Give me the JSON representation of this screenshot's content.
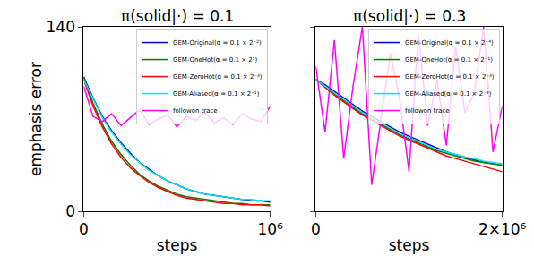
{
  "chart_data": [
    {
      "type": "line",
      "title": "π(solid|·) = 0.1",
      "x_label": "steps",
      "y_label": "emphasis error",
      "x": [
        0,
        50000,
        100000,
        150000,
        200000,
        250000,
        300000,
        350000,
        400000,
        450000,
        500000,
        550000,
        600000,
        650000,
        700000,
        750000,
        800000,
        850000,
        900000,
        950000,
        1000000
      ],
      "xlim": [
        0,
        1000000
      ],
      "xticks": [
        0,
        {
          "value": 1000000,
          "label": "10⁶"
        }
      ],
      "ylim": [
        0,
        140
      ],
      "yticks": [
        0,
        140
      ],
      "legend": "upper right",
      "series": [
        {
          "name": "GEM-Original(α = 0.1 × 2⁻²)",
          "color": "#0000cc",
          "values": [
            102,
            86,
            72,
            61,
            52,
            44,
            37,
            32,
            27,
            23,
            20,
            17,
            15,
            13,
            12,
            11,
            10,
            9,
            8,
            8,
            7
          ]
        },
        {
          "name": "GEM-OneHot(α = 0.1 × 2¹)",
          "color": "#008000",
          "values": [
            102,
            82,
            66,
            53,
            43,
            35,
            28,
            23,
            19,
            16,
            13,
            11,
            10,
            9,
            8,
            7,
            6,
            6,
            5,
            5,
            5
          ]
        },
        {
          "name": "GEM-ZeroHot(α = 0.1 × 2⁻³)",
          "color": "#ff0000",
          "values": [
            100,
            80,
            64,
            51,
            41,
            33,
            27,
            22,
            18,
            15,
            12,
            10,
            9,
            8,
            7,
            6,
            6,
            5,
            5,
            5,
            4
          ]
        },
        {
          "name": "GEM-Aliased(α = 0.1 × 2⁻¹)",
          "color": "#00e5ee",
          "values": [
            100,
            85,
            71,
            60,
            51,
            43,
            37,
            31,
            27,
            23,
            20,
            17,
            15,
            13,
            12,
            11,
            10,
            9,
            9,
            8,
            8
          ]
        },
        {
          "name": "followon trace",
          "color": "#ff00ff",
          "values": [
            95,
            72,
            68,
            74,
            65,
            71,
            77,
            66,
            70,
            73,
            64,
            72,
            69,
            75,
            67,
            71,
            66,
            74,
            70,
            68,
            80
          ]
        }
      ]
    },
    {
      "type": "line",
      "title": "π(solid|·) = 0.3",
      "x_label": "steps",
      "x": [
        0,
        100000,
        200000,
        300000,
        400000,
        500000,
        600000,
        700000,
        800000,
        900000,
        1000000,
        1100000,
        1200000,
        1300000,
        1400000,
        1500000,
        1600000,
        1700000,
        1800000,
        1900000,
        2000000
      ],
      "xlim": [
        0,
        2000000
      ],
      "xticks": [
        0,
        {
          "value": 2000000,
          "label": "2×10⁶"
        }
      ],
      "ylim": [
        0,
        140
      ],
      "yticks": [
        0,
        140
      ],
      "tick_labels": "x",
      "legend": "upper right",
      "series": [
        {
          "name": "GEM-Original(α = 0.1 × 2⁻⁴)",
          "color": "#0000cc",
          "values": [
            100,
            96,
            91,
            86,
            81,
            76,
            72,
            68,
            64,
            60,
            57,
            54,
            51,
            48,
            45,
            43,
            41,
            39,
            37,
            36,
            35
          ]
        },
        {
          "name": "GEM-OneHot(α = 0.1 × 2⁻¹)",
          "color": "#008000",
          "values": [
            100,
            95,
            89,
            84,
            79,
            74,
            70,
            66,
            62,
            58,
            55,
            52,
            49,
            46,
            44,
            42,
            40,
            38,
            37,
            36,
            35
          ]
        },
        {
          "name": "GEM-ZeroHot(α = 0.1 × 2⁻³)",
          "color": "#ff0000",
          "values": [
            100,
            94,
            88,
            83,
            78,
            73,
            69,
            65,
            61,
            57,
            54,
            51,
            48,
            45,
            42,
            40,
            38,
            36,
            34,
            32,
            30
          ]
        },
        {
          "name": "GEM-Aliased(α = 0.1 × 2⁻³)",
          "color": "#00e5ee",
          "values": [
            100,
            95,
            90,
            85,
            80,
            75,
            71,
            67,
            63,
            59,
            56,
            53,
            50,
            47,
            45,
            43,
            41,
            40,
            38,
            37,
            36
          ]
        },
        {
          "name": "followon trace",
          "color": "#ff00ff",
          "values": [
            110,
            60,
            130,
            40,
            95,
            140,
            20,
            70,
            120,
            85,
            30,
            135,
            65,
            100,
            50,
            125,
            75,
            90,
            140,
            45,
            80
          ]
        }
      ]
    }
  ]
}
